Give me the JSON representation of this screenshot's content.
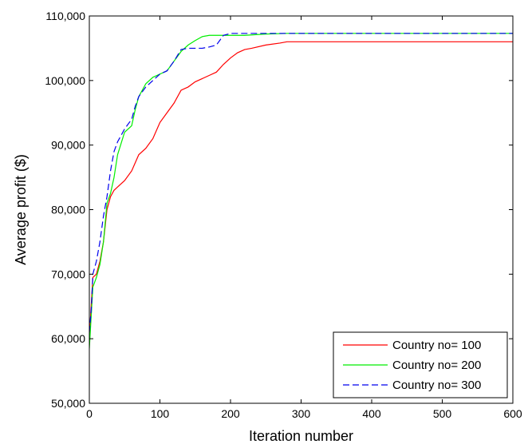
{
  "chart_data": {
    "type": "line",
    "title": "",
    "xlabel": "Iteration number",
    "ylabel": "Average profit ($)",
    "xlim": [
      0,
      600
    ],
    "ylim": [
      50000,
      110000
    ],
    "xticks": [
      0,
      100,
      200,
      300,
      400,
      500,
      600
    ],
    "xtick_labels": [
      "0",
      "100",
      "200",
      "300",
      "400",
      "500",
      "600"
    ],
    "yticks": [
      50000,
      60000,
      70000,
      80000,
      90000,
      100000,
      110000
    ],
    "ytick_labels": [
      "50,000",
      "60,000",
      "70,000",
      "80,000",
      "90,000",
      "100,000",
      "110,000"
    ],
    "grid": false,
    "legend_position": "bottom-right",
    "series": [
      {
        "name": "Country no= 100",
        "color": "#ff0000",
        "dash": "solid",
        "x": [
          0,
          2,
          5,
          10,
          15,
          20,
          25,
          30,
          35,
          40,
          50,
          60,
          70,
          80,
          90,
          100,
          110,
          120,
          130,
          140,
          150,
          160,
          170,
          180,
          190,
          200,
          210,
          220,
          230,
          250,
          270,
          280,
          300,
          600
        ],
        "y": [
          59000,
          64000,
          69500,
          70000,
          72000,
          75000,
          80000,
          82000,
          83000,
          83500,
          84500,
          86000,
          88500,
          89500,
          91000,
          93500,
          95000,
          96500,
          98500,
          99000,
          99800,
          100300,
          100800,
          101300,
          102500,
          103500,
          104300,
          104800,
          105000,
          105500,
          105800,
          106000,
          106000,
          106000
        ]
      },
      {
        "name": "Country no= 200",
        "color": "#00ee00",
        "dash": "solid",
        "x": [
          0,
          5,
          10,
          15,
          20,
          25,
          30,
          35,
          40,
          50,
          60,
          65,
          70,
          80,
          90,
          100,
          110,
          120,
          130,
          140,
          150,
          160,
          170,
          180,
          200,
          220,
          250,
          280,
          300,
          600
        ],
        "y": [
          58500,
          68000,
          69500,
          71500,
          75000,
          81000,
          82500,
          85000,
          88500,
          92000,
          93000,
          95500,
          97500,
          99500,
          100500,
          101000,
          101500,
          103000,
          104500,
          105500,
          106200,
          106800,
          107000,
          107000,
          107000,
          107000,
          107200,
          107300,
          107300,
          107300
        ]
      },
      {
        "name": "Country no= 300",
        "color": "#0000ee",
        "dash": "dashed",
        "x": [
          0,
          3,
          5,
          10,
          15,
          20,
          25,
          30,
          35,
          40,
          50,
          60,
          65,
          70,
          80,
          90,
          100,
          110,
          120,
          130,
          140,
          150,
          160,
          170,
          180,
          190,
          200,
          250,
          300,
          600
        ],
        "y": [
          61000,
          65000,
          70000,
          72000,
          75000,
          79000,
          82000,
          86000,
          89000,
          90500,
          92500,
          94000,
          96000,
          97500,
          99000,
          100000,
          101000,
          101500,
          103000,
          104800,
          105000,
          105000,
          105000,
          105200,
          105500,
          107000,
          107300,
          107300,
          107300,
          107300
        ]
      }
    ]
  }
}
